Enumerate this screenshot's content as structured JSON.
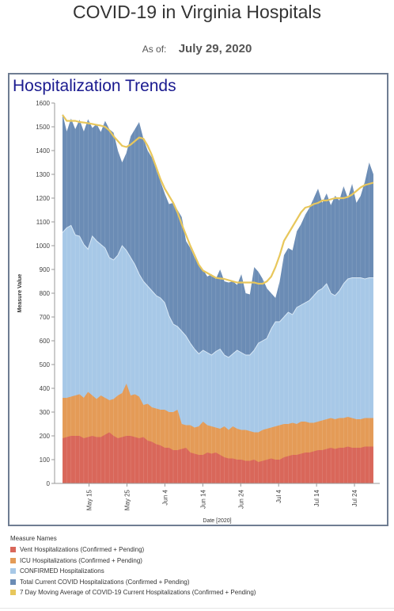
{
  "page": {
    "title": "COVID-19 in Virginia Hospitals",
    "asof_label": "As of:",
    "asof_date": "July 29, 2020"
  },
  "panel": {
    "title": "Hospitalization Trends"
  },
  "legend": {
    "title": "Measure Names",
    "items": [
      {
        "label": "Vent Hospitalizations (Confirmed + Pending)",
        "color": "#d9675a"
      },
      {
        "label": "ICU Hospitalizations (Confirmed + Pending)",
        "color": "#e49b57"
      },
      {
        "label": "CONFIRMED Hospitalizations",
        "color": "#a7c8e7"
      },
      {
        "label": "Total Current COVID Hospitalizations (Confirmed + Pending)",
        "color": "#6b8cb5"
      },
      {
        "label": "7 Day Moving Average of COVID-19 Current Hospitalizations (Confirmed + Pending)",
        "color": "#e8c75c"
      }
    ]
  },
  "chart_data": {
    "type": "area",
    "title": "",
    "xlabel": "Date [2020]",
    "ylabel": "Measure Value",
    "ylim": [
      0,
      1600
    ],
    "yticks": [
      0,
      100,
      200,
      300,
      400,
      500,
      600,
      700,
      800,
      900,
      1000,
      1100,
      1200,
      1300,
      1400,
      1500,
      1600
    ],
    "x_start": "2020-05-08",
    "x_end": "2020-07-29",
    "xticks": [
      {
        "label": "May 15",
        "date": "2020-05-15"
      },
      {
        "label": "May 25",
        "date": "2020-05-25"
      },
      {
        "label": "Jun 4",
        "date": "2020-06-04"
      },
      {
        "label": "Jun 14",
        "date": "2020-06-14"
      },
      {
        "label": "Jun 24",
        "date": "2020-06-24"
      },
      {
        "label": "Jul 4",
        "date": "2020-07-04"
      },
      {
        "label": "Jul 14",
        "date": "2020-07-14"
      },
      {
        "label": "Jul 24",
        "date": "2020-07-24"
      }
    ],
    "grid": false,
    "series": [
      {
        "name": "Total Current COVID Hospitalizations (Confirmed + Pending)",
        "kind": "area",
        "color": "#6b8cb5",
        "values": [
          1555,
          1480,
          1535,
          1490,
          1530,
          1480,
          1532,
          1495,
          1512,
          1478,
          1525,
          1490,
          1475,
          1400,
          1350,
          1390,
          1460,
          1490,
          1520,
          1450,
          1400,
          1370,
          1320,
          1270,
          1220,
          1175,
          1180,
          1150,
          1120,
          1020,
          990,
          950,
          925,
          900,
          870,
          880,
          860,
          900,
          850,
          845,
          850,
          835,
          880,
          800,
          795,
          910,
          890,
          860,
          820,
          800,
          780,
          850,
          960,
          990,
          980,
          1060,
          1090,
          1130,
          1160,
          1200,
          1240,
          1180,
          1220,
          1170,
          1210,
          1190,
          1250,
          1200,
          1260,
          1180,
          1210,
          1270,
          1350,
          1300
        ]
      },
      {
        "name": "CONFIRMED Hospitalizations",
        "kind": "area",
        "color": "#a7c8e7",
        "values": [
          1055,
          1075,
          1085,
          1045,
          1040,
          1005,
          985,
          1040,
          1020,
          1005,
          990,
          950,
          940,
          960,
          1000,
          980,
          950,
          920,
          880,
          850,
          830,
          810,
          790,
          780,
          760,
          705,
          670,
          660,
          640,
          620,
          590,
          565,
          545,
          560,
          550,
          540,
          555,
          565,
          540,
          530,
          545,
          560,
          550,
          540,
          540,
          560,
          590,
          600,
          610,
          650,
          680,
          680,
          700,
          720,
          710,
          740,
          750,
          760,
          770,
          790,
          810,
          820,
          840,
          800,
          790,
          810,
          840,
          860,
          865,
          865,
          865,
          860,
          865,
          865
        ]
      },
      {
        "name": "ICU Hospitalizations (Confirmed + Pending)",
        "kind": "area",
        "color": "#e49b57",
        "values": [
          360,
          360,
          365,
          370,
          375,
          360,
          385,
          370,
          355,
          370,
          360,
          350,
          355,
          370,
          380,
          420,
          370,
          375,
          365,
          330,
          335,
          320,
          315,
          310,
          310,
          300,
          300,
          310,
          250,
          245,
          245,
          235,
          240,
          260,
          245,
          240,
          235,
          230,
          240,
          225,
          240,
          230,
          225,
          225,
          220,
          215,
          215,
          225,
          230,
          235,
          240,
          245,
          250,
          250,
          255,
          250,
          260,
          260,
          255,
          255,
          260,
          265,
          270,
          275,
          270,
          275,
          275,
          280,
          275,
          270,
          270,
          275,
          275,
          275
        ]
      },
      {
        "name": "Vent Hospitalizations (Confirmed + Pending)",
        "kind": "area",
        "color": "#d9675a",
        "values": [
          190,
          195,
          200,
          200,
          200,
          190,
          195,
          200,
          195,
          195,
          205,
          215,
          200,
          190,
          195,
          200,
          200,
          195,
          190,
          195,
          180,
          175,
          165,
          160,
          150,
          150,
          140,
          140,
          145,
          150,
          130,
          125,
          120,
          120,
          130,
          125,
          130,
          120,
          110,
          105,
          105,
          100,
          100,
          95,
          95,
          100,
          90,
          95,
          100,
          105,
          100,
          100,
          110,
          115,
          120,
          120,
          125,
          130,
          130,
          135,
          140,
          140,
          145,
          150,
          145,
          150,
          150,
          155,
          150,
          150,
          150,
          155,
          155,
          155
        ]
      },
      {
        "name": "7 Day Moving Average of COVID-19 Current Hospitalizations (Confirmed + Pending)",
        "kind": "line",
        "color": "#e8c75c",
        "values": [
          1550,
          1525,
          1525,
          1525,
          1520,
          1518,
          1515,
          1512,
          1508,
          1505,
          1500,
          1485,
          1460,
          1440,
          1420,
          1415,
          1425,
          1440,
          1455,
          1450,
          1420,
          1380,
          1330,
          1280,
          1240,
          1210,
          1180,
          1140,
          1090,
          1045,
          1000,
          960,
          920,
          895,
          885,
          875,
          865,
          862,
          860,
          855,
          850,
          845,
          845,
          845,
          845,
          845,
          840,
          840,
          850,
          870,
          910,
          960,
          1020,
          1050,
          1080,
          1110,
          1140,
          1160,
          1165,
          1175,
          1180,
          1190,
          1190,
          1195,
          1200,
          1200,
          1200,
          1205,
          1215,
          1230,
          1245,
          1255,
          1260,
          1265
        ]
      }
    ]
  }
}
